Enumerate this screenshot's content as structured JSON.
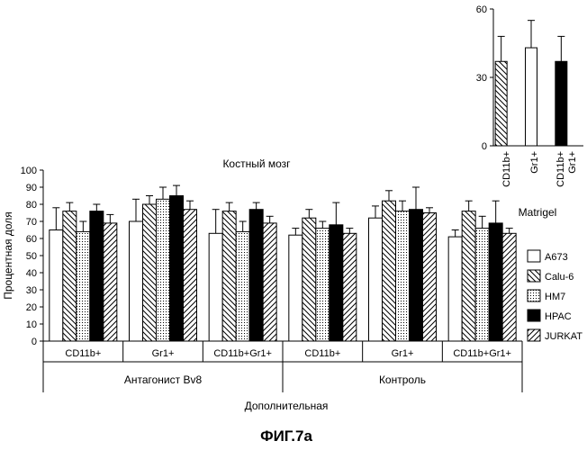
{
  "chart_data": [
    {
      "type": "bar",
      "title": "Костный мозг",
      "ylabel": "Процентная доля",
      "xlabel": "Дополнительная",
      "ylim": [
        0,
        100
      ],
      "yticks": [
        "0",
        "10",
        "20",
        "30",
        "40",
        "50",
        "60",
        "70",
        "80",
        "90",
        "100"
      ],
      "legend_position": "right",
      "series": [
        {
          "name": "A673",
          "pattern": "white",
          "values": [
            65,
            70,
            63,
            62,
            72,
            61
          ],
          "errors": [
            13,
            13,
            14,
            4,
            7,
            4
          ]
        },
        {
          "name": "Calu-6",
          "pattern": "diag-back",
          "values": [
            76,
            80,
            76,
            72,
            82,
            76
          ],
          "errors": [
            5,
            5,
            5,
            5,
            6,
            6
          ]
        },
        {
          "name": "HM7",
          "pattern": "dots",
          "values": [
            64,
            83,
            64,
            66,
            76,
            66
          ],
          "errors": [
            6,
            7,
            6,
            4,
            6,
            7
          ]
        },
        {
          "name": "HPAC",
          "pattern": "black",
          "values": [
            76,
            85,
            77,
            68,
            77,
            69
          ],
          "errors": [
            4,
            6,
            4,
            13,
            13,
            13
          ]
        },
        {
          "name": "JURKAT",
          "pattern": "diag-fwd",
          "values": [
            69,
            77,
            69,
            63,
            75,
            63
          ],
          "errors": [
            5,
            5,
            4,
            3,
            3,
            3
          ]
        }
      ],
      "categories": [
        "CD11b+",
        "Gr1+",
        "CD11b+Gr1+",
        "CD11b+",
        "Gr1+",
        "CD11b+Gr1+"
      ],
      "groups": [
        {
          "label": "Антагонист Bv8",
          "span": [
            0,
            2
          ]
        },
        {
          "label": "Контроль",
          "span": [
            3,
            5
          ]
        }
      ]
    },
    {
      "type": "bar",
      "title": "",
      "xlabel": "Matrigel",
      "ylim": [
        0,
        60
      ],
      "yticks": [
        "0",
        "30",
        "60"
      ],
      "categories": [
        "CD11b+",
        "Gr1+",
        "CD11b+ Gr1+"
      ],
      "bars": [
        {
          "label": "CD11b+",
          "value": 37,
          "error": 11,
          "pattern": "diag-back"
        },
        {
          "label": "Gr1+",
          "value": 43,
          "error": 12,
          "pattern": "white"
        },
        {
          "label": "CD11b+ Gr1+",
          "value": 37,
          "error": 11,
          "pattern": "black"
        }
      ]
    }
  ],
  "figure_caption": "ФИГ.7a"
}
